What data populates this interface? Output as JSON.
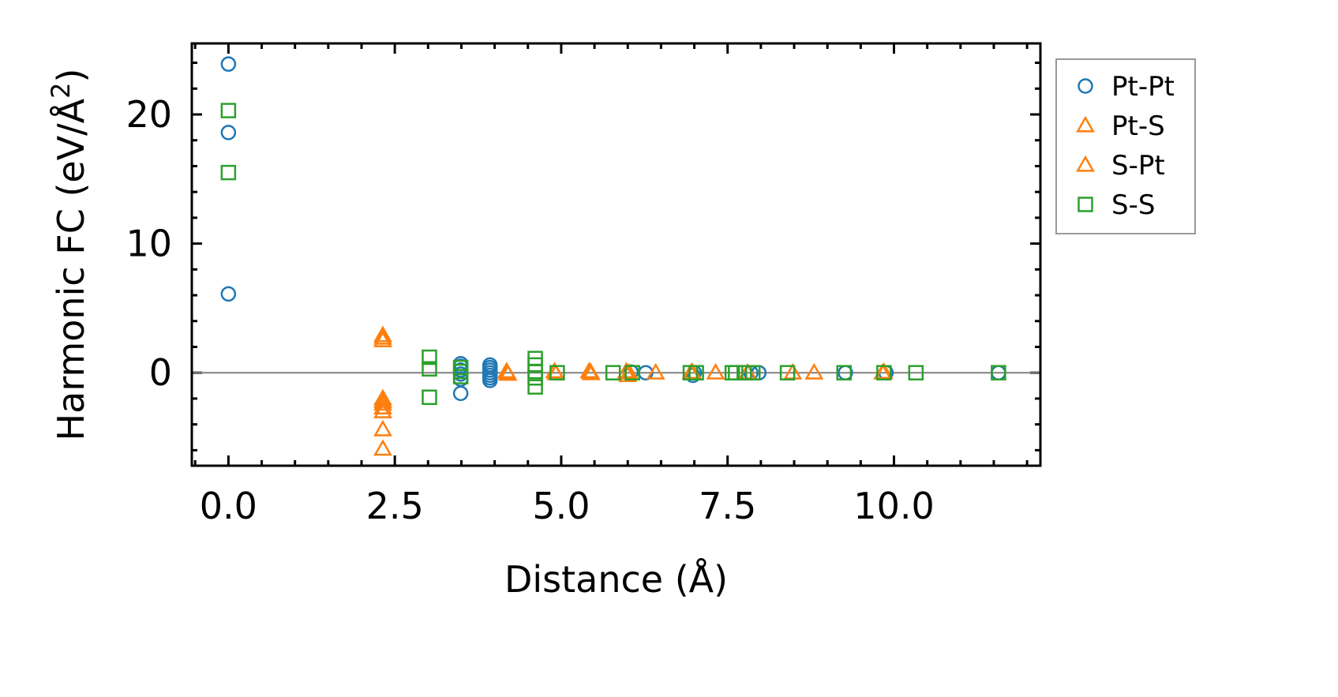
{
  "chart_data": {
    "type": "scatter",
    "title": "",
    "xlabel": "Distance (Å)",
    "ylabel": "Harmonic FC (eV/Å²)",
    "xlim": [
      -0.55,
      12.2
    ],
    "ylim": [
      -7.2,
      25.5
    ],
    "x_ticks": [
      {
        "value": 0,
        "label": "0.0"
      },
      {
        "value": 2.5,
        "label": "2.5"
      },
      {
        "value": 5,
        "label": "5.0"
      },
      {
        "value": 7.5,
        "label": "7.5"
      },
      {
        "value": 10,
        "label": "10.0"
      }
    ],
    "y_ticks": [
      {
        "value": 0,
        "label": "0"
      },
      {
        "value": 10,
        "label": "10"
      },
      {
        "value": 20,
        "label": "20"
      }
    ],
    "zero_line": true,
    "grid": false,
    "legend_position": "outside-right",
    "series": [
      {
        "name": "Pt-Pt",
        "marker": "circle",
        "color": "#1f77b4",
        "points": [
          [
            0,
            23.9
          ],
          [
            0,
            18.6
          ],
          [
            0,
            6.1
          ],
          [
            3.49,
            0.7
          ],
          [
            3.49,
            0.5
          ],
          [
            3.49,
            0.2
          ],
          [
            3.49,
            -0.1
          ],
          [
            3.49,
            -0.5
          ],
          [
            3.49,
            -1.6
          ],
          [
            3.93,
            0.6
          ],
          [
            3.93,
            0.4
          ],
          [
            3.93,
            0.2
          ],
          [
            3.93,
            0.0
          ],
          [
            3.93,
            -0.2
          ],
          [
            3.93,
            -0.4
          ],
          [
            3.93,
            -0.6
          ],
          [
            6.05,
            0.05
          ],
          [
            6.27,
            0.0
          ],
          [
            6.98,
            -0.2
          ],
          [
            7.0,
            0.0
          ],
          [
            7.85,
            0.0
          ],
          [
            7.97,
            0.0
          ],
          [
            9.27,
            0.0
          ],
          [
            9.88,
            0.0
          ],
          [
            11.57,
            0.0
          ]
        ]
      },
      {
        "name": "Pt-S",
        "marker": "triangle",
        "color": "#ff7f0e",
        "points": [
          [
            2.32,
            2.9
          ],
          [
            2.32,
            2.5
          ],
          [
            2.32,
            -2.0
          ],
          [
            2.32,
            -2.4
          ],
          [
            2.32,
            -3.0
          ],
          [
            2.32,
            -4.4
          ],
          [
            2.32,
            -5.9
          ],
          [
            4.18,
            0.1
          ],
          [
            4.2,
            -0.1
          ],
          [
            4.9,
            0.1
          ],
          [
            5.42,
            0.1
          ],
          [
            5.45,
            -0.05
          ],
          [
            5.98,
            0.1
          ],
          [
            6.0,
            -0.2
          ],
          [
            6.42,
            0.0
          ],
          [
            6.95,
            0.0
          ],
          [
            7.32,
            0.0
          ],
          [
            7.8,
            0.0
          ],
          [
            8.48,
            0.0
          ],
          [
            8.8,
            0.0
          ],
          [
            9.83,
            0.0
          ]
        ]
      },
      {
        "name": "S-Pt",
        "marker": "triangle",
        "color": "#ff7f0e",
        "points": [
          [
            2.32,
            2.7
          ],
          [
            2.32,
            -2.2
          ],
          [
            2.32,
            -2.7
          ],
          [
            4.19,
            0.0
          ],
          [
            4.92,
            -0.05
          ],
          [
            5.44,
            0.05
          ],
          [
            6.02,
            0.0
          ],
          [
            6.97,
            0.05
          ],
          [
            9.85,
            0.05
          ]
        ]
      },
      {
        "name": "S-S",
        "marker": "square",
        "color": "#2ca02c",
        "points": [
          [
            0,
            20.3
          ],
          [
            0,
            15.5
          ],
          [
            3.02,
            1.2
          ],
          [
            3.02,
            0.3
          ],
          [
            3.02,
            -1.9
          ],
          [
            3.49,
            0.4
          ],
          [
            3.49,
            0.1
          ],
          [
            3.49,
            -0.3
          ],
          [
            4.61,
            1.1
          ],
          [
            4.61,
            0.6
          ],
          [
            4.61,
            0.1
          ],
          [
            4.61,
            -0.4
          ],
          [
            4.61,
            -1.1
          ],
          [
            4.94,
            0.0
          ],
          [
            5.78,
            0.0
          ],
          [
            6.07,
            0.0
          ],
          [
            6.94,
            0.0
          ],
          [
            7.03,
            0.0
          ],
          [
            7.57,
            0.0
          ],
          [
            7.62,
            0.0
          ],
          [
            7.75,
            0.0
          ],
          [
            7.88,
            0.0
          ],
          [
            8.4,
            0.0
          ],
          [
            9.25,
            0.0
          ],
          [
            9.85,
            0.0
          ],
          [
            10.33,
            0.0
          ],
          [
            11.57,
            0.0
          ]
        ]
      }
    ]
  }
}
